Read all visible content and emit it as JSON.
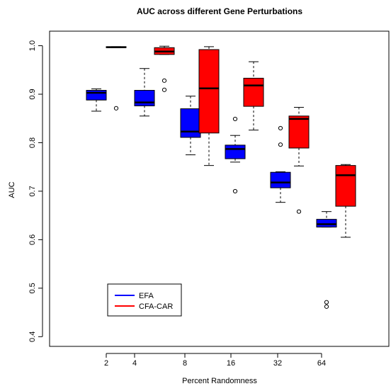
{
  "chart_data": {
    "type": "box",
    "title": "AUC across different Gene Perturbations",
    "xlabel": "Percent Randomness",
    "ylabel": "AUC",
    "categories": [
      "2",
      "4",
      "8",
      "16",
      "32",
      "64"
    ],
    "ylim": [
      0.38,
      1.03
    ],
    "yticks": [
      "0.4",
      "0.5",
      "0.6",
      "0.7",
      "0.8",
      "0.9",
      "1.0"
    ],
    "grid": false,
    "legend_position": "bottom-left",
    "series": [
      {
        "name": "EFA",
        "color": "#0000ff",
        "boxes": [
          {
            "min": 0.865,
            "q1": 0.888,
            "median": 0.903,
            "q3": 0.908,
            "max": 0.911,
            "outliers": []
          },
          {
            "min": 0.855,
            "q1": 0.876,
            "median": 0.883,
            "q3": 0.908,
            "max": 0.953,
            "outliers": []
          },
          {
            "min": 0.775,
            "q1": 0.811,
            "median": 0.823,
            "q3": 0.87,
            "max": 0.896,
            "outliers": []
          },
          {
            "min": 0.76,
            "q1": 0.767,
            "median": 0.787,
            "q3": 0.795,
            "max": 0.815,
            "outliers": [
              0.849,
              0.7
            ]
          },
          {
            "min": 0.677,
            "q1": 0.707,
            "median": 0.718,
            "q3": 0.739,
            "max": 0.74,
            "outliers": [
              0.83,
              0.796
            ]
          },
          {
            "min": 0.626,
            "q1": 0.626,
            "median": 0.632,
            "q3": 0.642,
            "max": 0.658,
            "outliers": [
              0.471,
              0.462
            ]
          }
        ]
      },
      {
        "name": "CFA-CAR",
        "color": "#ff0000",
        "boxes": [
          {
            "min": 0.996,
            "q1": 0.996,
            "median": 0.997,
            "q3": 0.998,
            "max": 0.998,
            "outliers": [
              0.871
            ]
          },
          {
            "min": 0.982,
            "q1": 0.982,
            "median": 0.988,
            "q3": 0.996,
            "max": 0.999,
            "outliers": [
              0.928,
              0.909
            ]
          },
          {
            "min": 0.753,
            "q1": 0.82,
            "median": 0.912,
            "q3": 0.992,
            "max": 0.998,
            "outliers": []
          },
          {
            "min": 0.826,
            "q1": 0.875,
            "median": 0.918,
            "q3": 0.933,
            "max": 0.967,
            "outliers": []
          },
          {
            "min": 0.752,
            "q1": 0.789,
            "median": 0.849,
            "q3": 0.855,
            "max": 0.873,
            "outliers": [
              0.658
            ]
          },
          {
            "min": 0.605,
            "q1": 0.669,
            "median": 0.733,
            "q3": 0.753,
            "max": 0.755,
            "outliers": []
          }
        ]
      }
    ]
  }
}
